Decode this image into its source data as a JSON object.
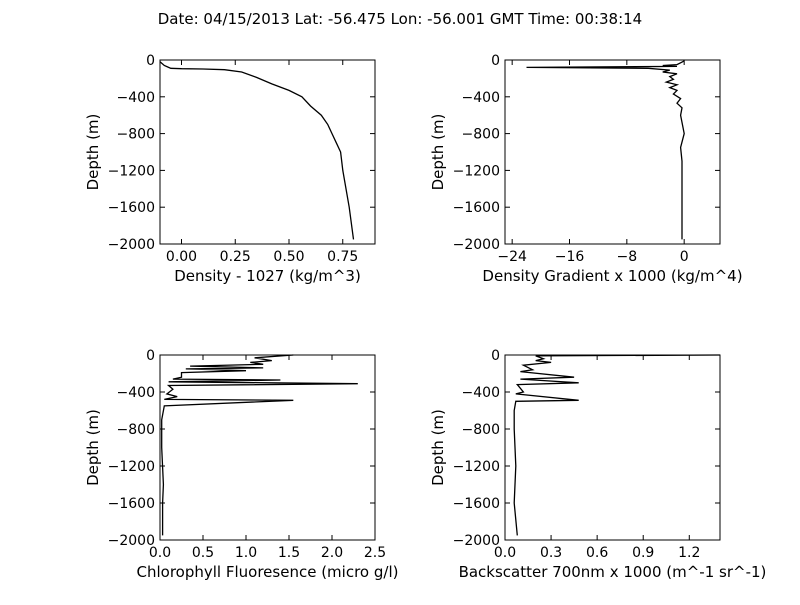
{
  "title": "Date: 04/15/2013  Lat:  -56.475 Lon:  -56.001  GMT Time: 00:38:14",
  "chart_data": [
    {
      "type": "line",
      "xlabel": "Density - 1027 (kg/m^3)",
      "ylabel": "Depth (m)",
      "xlim": [
        -0.1,
        0.9
      ],
      "ylim": [
        -2000,
        0
      ],
      "xticks": [
        0.0,
        0.25,
        0.5,
        0.75
      ],
      "xtick_labels": [
        "0.00",
        "0.25",
        "0.50",
        "0.75"
      ],
      "yticks": [
        0,
        -400,
        -800,
        -1200,
        -1600,
        -2000
      ],
      "ytick_labels": [
        "0",
        "−400",
        "−800",
        "−1200",
        "−1600",
        "−2000"
      ],
      "x": [
        -0.1,
        -0.08,
        -0.06,
        -0.05,
        0.0,
        0.1,
        0.2,
        0.28,
        0.35,
        0.42,
        0.5,
        0.56,
        0.6,
        0.65,
        0.68,
        0.7,
        0.72,
        0.74,
        0.75,
        0.78,
        0.8
      ],
      "y": [
        -20,
        -60,
        -80,
        -90,
        -95,
        -98,
        -105,
        -130,
        -190,
        -260,
        -330,
        -400,
        -500,
        -600,
        -700,
        -800,
        -900,
        -1000,
        -1200,
        -1600,
        -1950
      ]
    },
    {
      "type": "line",
      "xlabel": "Density Gradient x 1000 (kg/m^4)",
      "ylabel": "Depth (m)",
      "xlim": [
        -25,
        5
      ],
      "ylim": [
        -2000,
        0
      ],
      "xticks": [
        -24,
        -16,
        -8,
        0
      ],
      "xtick_labels": [
        "−24",
        "−16",
        "−8",
        "0"
      ],
      "yticks": [
        0,
        -400,
        -800,
        -1200,
        -1600,
        -2000
      ],
      "ytick_labels": [
        "0",
        "−400",
        "−800",
        "−1200",
        "−1600",
        "−2000"
      ],
      "x": [
        0,
        -0.5,
        -1,
        -3,
        -1,
        -22,
        -5,
        -2,
        -3,
        -1,
        -2,
        -1.5,
        -2.5,
        -1,
        -2,
        -1,
        -1.5,
        -0.5,
        -1,
        -0.3,
        -0.5,
        0,
        -0.5,
        -0.3,
        -0.3
      ],
      "y": [
        -10,
        -30,
        -50,
        -60,
        -70,
        -80,
        -90,
        -110,
        -130,
        -150,
        -180,
        -210,
        -240,
        -270,
        -300,
        -330,
        -370,
        -420,
        -470,
        -520,
        -600,
        -800,
        -950,
        -1100,
        -1950
      ]
    },
    {
      "type": "line",
      "xlabel": "Chlorophyll Fluoresence (micro g/l)",
      "ylabel": "Depth (m)",
      "xlim": [
        0.0,
        2.5
      ],
      "ylim": [
        -2000,
        0
      ],
      "xticks": [
        0.0,
        0.5,
        1.0,
        1.5,
        2.0,
        2.5
      ],
      "xtick_labels": [
        "0.0",
        "0.5",
        "1.0",
        "1.5",
        "2.0",
        "2.5"
      ],
      "yticks": [
        0,
        -400,
        -800,
        -1200,
        -1600,
        -2000
      ],
      "ytick_labels": [
        "0",
        "−400",
        "−800",
        "−1200",
        "−1600",
        "−2000"
      ],
      "x": [
        1.55,
        1.1,
        1.3,
        1.05,
        1.2,
        0.35,
        1.2,
        0.3,
        1.0,
        0.25,
        0.25,
        0.15,
        1.4,
        0.1,
        2.3,
        0.1,
        0.15,
        0.08,
        0.2,
        0.05,
        1.55,
        0.05,
        0.02,
        0.02,
        0.04,
        0.03,
        0.03
      ],
      "y": [
        0,
        -30,
        -60,
        -80,
        -100,
        -120,
        -140,
        -150,
        -170,
        -190,
        -240,
        -260,
        -270,
        -290,
        -310,
        -330,
        -370,
        -420,
        -450,
        -480,
        -490,
        -550,
        -700,
        -1000,
        -1400,
        -1600,
        -1950
      ]
    },
    {
      "type": "line",
      "xlabel": "Backscatter 700nm x 1000 (m^-1 sr^-1)",
      "ylabel": "Depth (m)",
      "xlim": [
        0.0,
        1.4
      ],
      "ylim": [
        -2000,
        0
      ],
      "xticks": [
        0.0,
        0.3,
        0.6,
        0.9,
        1.2
      ],
      "xtick_labels": [
        "0.0",
        "0.3",
        "0.6",
        "0.9",
        "1.2"
      ],
      "yticks": [
        0,
        -400,
        -800,
        -1200,
        -1600,
        -2000
      ],
      "ytick_labels": [
        "0",
        "−400",
        "−800",
        "−1200",
        "−1600",
        "−2000"
      ],
      "x": [
        1.4,
        0.2,
        0.25,
        0.2,
        0.3,
        0.12,
        0.18,
        0.1,
        0.45,
        0.1,
        0.48,
        0.08,
        0.12,
        0.07,
        0.48,
        0.07,
        0.06,
        0.06,
        0.07,
        0.06,
        0.08
      ],
      "y": [
        0,
        -10,
        -40,
        -60,
        -80,
        -110,
        -160,
        -180,
        -240,
        -260,
        -300,
        -320,
        -400,
        -420,
        -490,
        -500,
        -600,
        -800,
        -1200,
        -1600,
        -1950
      ]
    }
  ]
}
